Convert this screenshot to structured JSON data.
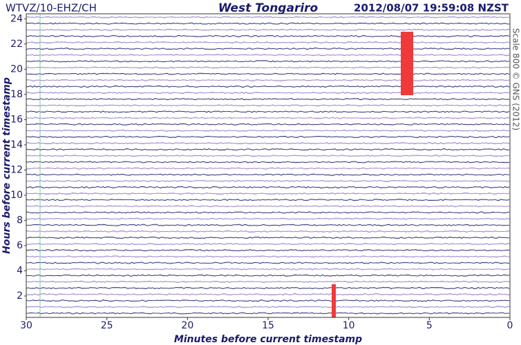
{
  "chart_data": {
    "type": "helicorder",
    "station": "WTVZ/10-EHZ/CH",
    "title": "West Tongariro",
    "subtitle": "2012/08/07 19:59:08 NZST",
    "x_label": "Minutes before current timestamp",
    "y_label": "Hours before current timestamp",
    "annotation": "Scale 800 © GNS (2012)",
    "xlim": [
      30,
      0
    ],
    "xticks": [
      30,
      25,
      20,
      15,
      10,
      5,
      0
    ],
    "ylim": [
      0.3,
      24.4
    ],
    "yticks": [
      2,
      4,
      6,
      8,
      10,
      12,
      14,
      16,
      18,
      20,
      22,
      24
    ],
    "colors": [
      "#1a1a6e",
      "#9a7fd6"
    ]
  }
}
